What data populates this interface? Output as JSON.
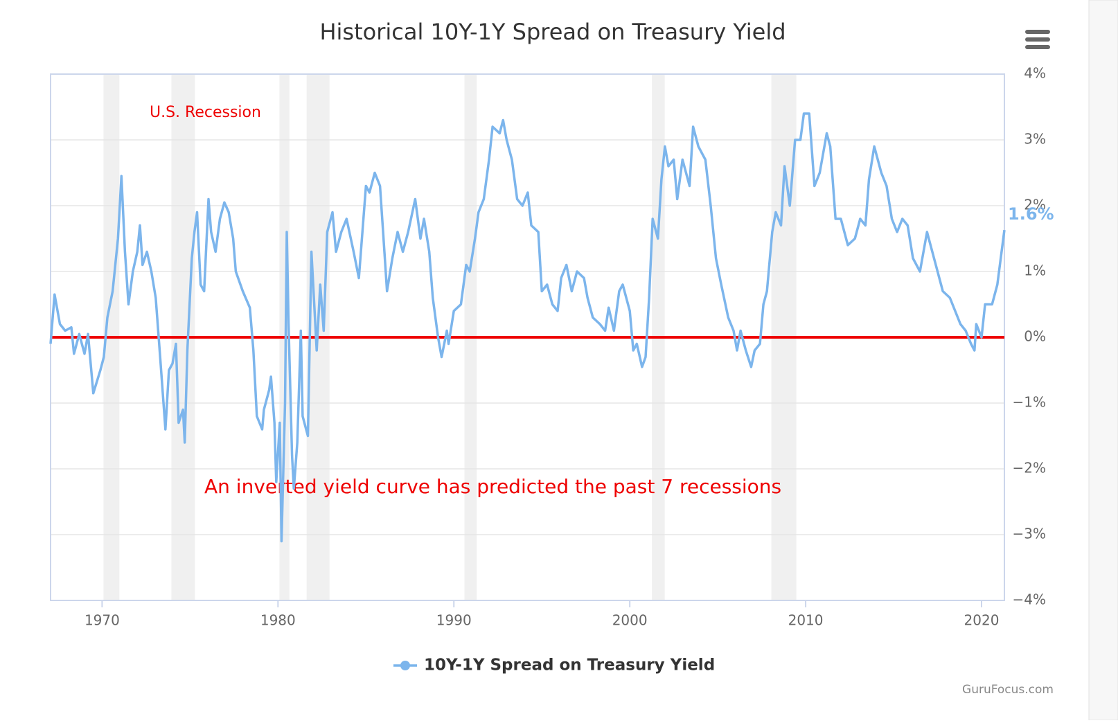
{
  "chart_data": {
    "type": "line",
    "title": "Historical 10Y-1Y Spread on Treasury Yield",
    "credit": "GuruFocus.com",
    "annotations": [
      "U.S. Recession",
      "An inverted yield curve has predicted the past 7 recessions"
    ],
    "recessions": [
      [
        1970.08,
        1970.98
      ],
      [
        1973.94,
        1975.28
      ],
      [
        1980.08,
        1980.65
      ],
      [
        1981.63,
        1982.93
      ],
      [
        1990.6,
        1991.3
      ],
      [
        2001.26,
        2001.99
      ],
      [
        2008.05,
        2009.47
      ]
    ],
    "recession_color": "#f0f0f0",
    "reference_line": {
      "value": 0,
      "color": "#ee0000"
    },
    "xlim": [
      1967.07,
      2021.3
    ],
    "xticks": [
      1970,
      1980,
      1990,
      2000,
      2010,
      2020
    ],
    "ylim": [
      -4,
      4
    ],
    "yticks": [
      {
        "value": -4,
        "label": "−4%"
      },
      {
        "value": -3,
        "label": "−3%"
      },
      {
        "value": -2,
        "label": "−2%"
      },
      {
        "value": -1,
        "label": "−1%"
      },
      {
        "value": 0,
        "label": "0%"
      },
      {
        "value": 1,
        "label": "1%"
      },
      {
        "value": 2,
        "label": "2%"
      },
      {
        "value": 3,
        "label": "3%"
      },
      {
        "value": 4,
        "label": "4%"
      }
    ],
    "grid": true,
    "x": [
      1967.07,
      1967.3,
      1967.6,
      1967.9,
      1968.25,
      1968.4,
      1968.7,
      1969.0,
      1969.2,
      1969.5,
      1969.9,
      1970.1,
      1970.3,
      1970.6,
      1970.9,
      1971.1,
      1971.3,
      1971.5,
      1971.75,
      1972.0,
      1972.15,
      1972.3,
      1972.55,
      1972.8,
      1973.05,
      1973.3,
      1973.6,
      1973.8,
      1974.0,
      1974.2,
      1974.35,
      1974.6,
      1974.7,
      1974.85,
      1975.1,
      1975.25,
      1975.4,
      1975.6,
      1975.8,
      1976.05,
      1976.2,
      1976.45,
      1976.7,
      1976.95,
      1977.2,
      1977.45,
      1977.6,
      1978.0,
      1978.4,
      1978.6,
      1978.8,
      1979.1,
      1979.2,
      1979.5,
      1979.6,
      1979.8,
      1979.9,
      1980.1,
      1980.2,
      1980.4,
      1980.5,
      1980.6,
      1980.8,
      1980.9,
      1981.1,
      1981.3,
      1981.4,
      1981.7,
      1981.9,
      1982.2,
      1982.4,
      1982.6,
      1982.8,
      1983.1,
      1983.3,
      1983.6,
      1983.9,
      1984.3,
      1984.6,
      1985.0,
      1985.2,
      1985.5,
      1985.8,
      1986.0,
      1986.2,
      1986.5,
      1986.8,
      1987.1,
      1987.4,
      1987.8,
      1988.1,
      1988.3,
      1988.6,
      1988.8,
      1989.1,
      1989.3,
      1989.6,
      1989.7,
      1990.0,
      1990.4,
      1990.7,
      1990.9,
      1991.2,
      1991.4,
      1991.7,
      1992.0,
      1992.2,
      1992.6,
      1992.8,
      1993.0,
      1993.3,
      1993.6,
      1993.9,
      1994.2,
      1994.4,
      1994.8,
      1995.0,
      1995.3,
      1995.6,
      1995.9,
      1996.1,
      1996.4,
      1996.7,
      1997.0,
      1997.4,
      1997.6,
      1997.9,
      1998.3,
      1998.6,
      1998.8,
      1999.1,
      1999.4,
      1999.6,
      2000.0,
      2000.2,
      2000.4,
      2000.7,
      2000.9,
      2001.1,
      2001.3,
      2001.6,
      2001.8,
      2002.0,
      2002.2,
      2002.5,
      2002.7,
      2003.0,
      2003.4,
      2003.6,
      2003.9,
      2004.3,
      2004.6,
      2004.9,
      2005.2,
      2005.6,
      2005.9,
      2006.1,
      2006.3,
      2006.6,
      2006.9,
      2007.1,
      2007.4,
      2007.6,
      2007.8,
      2008.1,
      2008.3,
      2008.6,
      2008.8,
      2009.1,
      2009.4,
      2009.7,
      2009.9,
      2010.2,
      2010.5,
      2010.8,
      2011.2,
      2011.4,
      2011.7,
      2012.0,
      2012.4,
      2012.8,
      2013.1,
      2013.4,
      2013.6,
      2013.9,
      2014.3,
      2014.6,
      2014.9,
      2015.2,
      2015.5,
      2015.8,
      2016.1,
      2016.5,
      2016.9,
      2017.2,
      2017.5,
      2017.8,
      2018.2,
      2018.5,
      2018.8,
      2019.1,
      2019.4,
      2019.6,
      2019.7,
      2020.0,
      2020.2,
      2020.6,
      2020.9,
      2021.3
    ],
    "series": [
      {
        "name": "10Y-1Y Spread on Treasury Yield",
        "color": "#7cb5ec",
        "last_label": "1.6%",
        "values": [
          -0.1,
          0.65,
          0.2,
          0.1,
          0.15,
          -0.25,
          0.05,
          -0.25,
          0.05,
          -0.85,
          -0.5,
          -0.3,
          0.3,
          0.7,
          1.5,
          2.45,
          1.3,
          0.5,
          1.0,
          1.3,
          1.7,
          1.1,
          1.3,
          1.0,
          0.6,
          -0.3,
          -1.4,
          -0.5,
          -0.4,
          -0.1,
          -1.3,
          -1.1,
          -1.6,
          -0.2,
          1.2,
          1.6,
          1.9,
          0.8,
          0.7,
          2.1,
          1.6,
          1.3,
          1.8,
          2.05,
          1.9,
          1.5,
          1.0,
          0.7,
          0.45,
          -0.2,
          -1.2,
          -1.4,
          -1.1,
          -0.8,
          -0.6,
          -1.3,
          -2.2,
          -1.3,
          -3.1,
          -1.0,
          1.6,
          0.2,
          -1.8,
          -2.3,
          -1.6,
          0.1,
          -1.2,
          -1.5,
          1.3,
          -0.2,
          0.8,
          0.1,
          1.6,
          1.9,
          1.3,
          1.6,
          1.8,
          1.3,
          0.9,
          2.3,
          2.2,
          2.5,
          2.3,
          1.5,
          0.7,
          1.2,
          1.6,
          1.3,
          1.6,
          2.1,
          1.5,
          1.8,
          1.3,
          0.6,
          0.0,
          -0.3,
          0.1,
          -0.1,
          0.4,
          0.5,
          1.1,
          1.0,
          1.5,
          1.9,
          2.1,
          2.7,
          3.2,
          3.1,
          3.3,
          3.0,
          2.7,
          2.1,
          2.0,
          2.2,
          1.7,
          1.6,
          0.7,
          0.8,
          0.5,
          0.4,
          0.9,
          1.1,
          0.7,
          1.0,
          0.9,
          0.6,
          0.3,
          0.2,
          0.1,
          0.45,
          0.1,
          0.7,
          0.8,
          0.4,
          -0.2,
          -0.1,
          -0.45,
          -0.3,
          0.6,
          1.8,
          1.5,
          2.4,
          2.9,
          2.6,
          2.7,
          2.1,
          2.7,
          2.3,
          3.2,
          2.9,
          2.7,
          2.0,
          1.2,
          0.8,
          0.3,
          0.1,
          -0.2,
          0.1,
          -0.2,
          -0.45,
          -0.2,
          -0.1,
          0.5,
          0.7,
          1.6,
          1.9,
          1.7,
          2.6,
          2.0,
          3.0,
          3.0,
          3.4,
          3.4,
          2.3,
          2.5,
          3.1,
          2.9,
          1.8,
          1.8,
          1.4,
          1.5,
          1.8,
          1.7,
          2.4,
          2.9,
          2.5,
          2.3,
          1.8,
          1.6,
          1.8,
          1.7,
          1.2,
          1.0,
          1.6,
          1.3,
          1.0,
          0.7,
          0.6,
          0.4,
          0.2,
          0.1,
          -0.1,
          -0.2,
          0.2,
          0.0,
          0.5,
          0.5,
          0.8,
          1.63
        ]
      }
    ]
  }
}
